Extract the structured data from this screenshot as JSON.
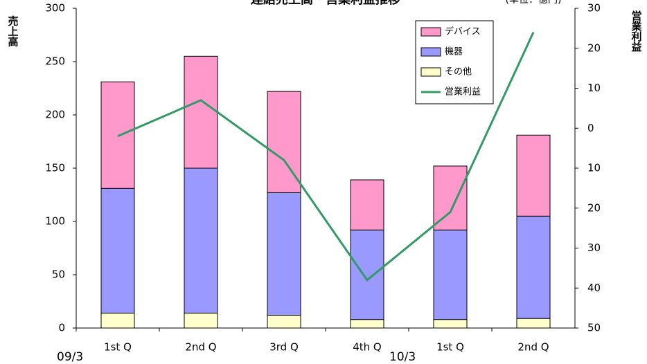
{
  "chart_data": {
    "type": "bar",
    "title": "連結売上高・営業利益推移",
    "subtitle": "(単位：億円)",
    "y_label": "売上高",
    "y2_label": "営業利益",
    "categories": [
      "1st Q",
      "2nd Q",
      "3rd Q",
      "4th Q",
      "1st Q",
      "2nd Q"
    ],
    "groups": [
      {
        "label": "09/3",
        "start": 0
      },
      {
        "label": "10/3",
        "start": 4
      }
    ],
    "series": [
      {
        "name": "デバイス",
        "color": "#ff99cc",
        "values": [
          100,
          105,
          95,
          47,
          60,
          76
        ]
      },
      {
        "name": "機器",
        "color": "#9999ff",
        "values": [
          117,
          136,
          115,
          84,
          84,
          96
        ]
      },
      {
        "name": "その他",
        "color": "#ffffcc",
        "values": [
          14,
          14,
          12,
          8,
          8,
          9
        ]
      },
      {
        "name": "営業利益",
        "color": "#339966",
        "type": "line",
        "axis": "y2",
        "values": [
          -2,
          7,
          -8,
          -38,
          -21,
          24
        ]
      }
    ],
    "stacked": true,
    "ylim": [
      0,
      300
    ],
    "yticks": [
      0,
      50,
      100,
      150,
      200,
      250,
      300
    ],
    "y2lim": [
      -50,
      30
    ],
    "y2ticks": [
      {
        "value": -50,
        "label": "50"
      },
      {
        "value": -40,
        "label": "40"
      },
      {
        "value": -30,
        "label": "30"
      },
      {
        "value": -20,
        "label": "20"
      },
      {
        "value": -10,
        "label": "10"
      },
      0,
      10,
      20,
      30
    ],
    "legend": "upper right",
    "grid": false
  }
}
